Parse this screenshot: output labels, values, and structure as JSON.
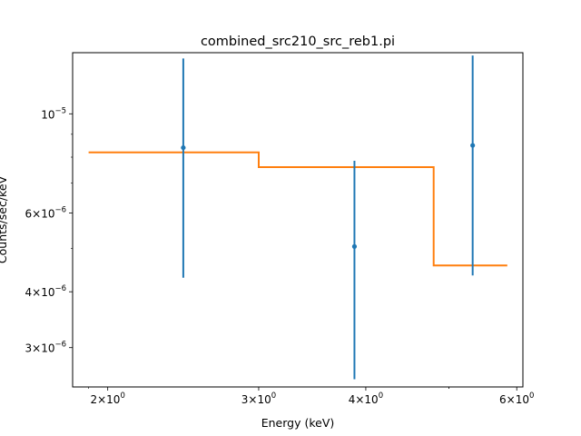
{
  "chart_data": {
    "type": "scatter",
    "title": "combined_src210_src_reb1.pi",
    "xlabel": "Energy (keV)",
    "ylabel": "Counts/sec/keV",
    "xscale": "log",
    "yscale": "log",
    "xlim": [
      1.82,
      6.1
    ],
    "ylim": [
      2.45e-06,
      1.37e-05
    ],
    "grid": false,
    "x_ticks": [
      {
        "value": 2,
        "mantissa": "2",
        "exp": "0"
      },
      {
        "value": 3,
        "mantissa": "3",
        "exp": "0"
      },
      {
        "value": 4,
        "mantissa": "4",
        "exp": "0"
      },
      {
        "value": 6,
        "mantissa": "6",
        "exp": "0"
      }
    ],
    "y_ticks": [
      {
        "value": 3e-06,
        "mantissa": "3",
        "exp": "−6"
      },
      {
        "value": 4e-06,
        "mantissa": "4",
        "exp": "−6"
      },
      {
        "value": 6e-06,
        "mantissa": "6",
        "exp": "−6"
      },
      {
        "value": 1e-05,
        "mantissa": "",
        "exp": "−5"
      }
    ],
    "series": [
      {
        "type": "errorbar",
        "color": "#1f77b4",
        "points": [
          {
            "x": 2.45,
            "y": 8.4e-06,
            "ylo": 4.3e-06,
            "yhi": 1.33e-05
          },
          {
            "x": 3.88,
            "y": 5.05e-06,
            "ylo": 2.55e-06,
            "yhi": 7.85e-06
          },
          {
            "x": 5.33,
            "y": 8.5e-06,
            "ylo": 4.35e-06,
            "yhi": 1.35e-05
          }
        ]
      },
      {
        "type": "step",
        "color": "#ff7f0e",
        "segments": [
          {
            "x0": 1.9,
            "x1": 3.0,
            "y": 8.2e-06
          },
          {
            "x0": 3.0,
            "x1": 4.8,
            "y": 7.6e-06
          },
          {
            "x0": 4.8,
            "x1": 5.85,
            "y": 4.58e-06
          }
        ]
      }
    ]
  }
}
